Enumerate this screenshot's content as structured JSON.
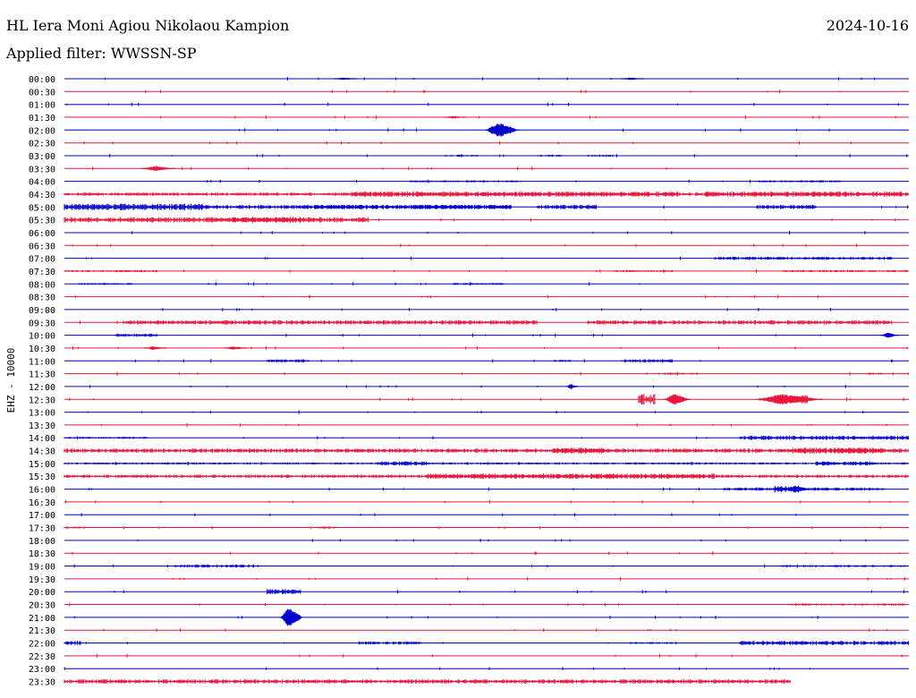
{
  "header": {
    "station": "HL Iera Moni Agiou Nikolaou Kampion",
    "date": "2024-10-16",
    "filter": "Applied filter: WWSSN-SP"
  },
  "chart_data": {
    "type": "line",
    "title": "HL Iera Moni Agiou Nikolaou Kampion",
    "ylabel": "EHZ - 10000",
    "trace_colors": [
      "#0000cc",
      "#e8163c"
    ],
    "rows": [
      "00:00",
      "00:30",
      "01:00",
      "01:30",
      "02:00",
      "02:30",
      "03:00",
      "03:30",
      "04:00",
      "04:30",
      "05:00",
      "05:30",
      "06:00",
      "06:30",
      "07:00",
      "07:30",
      "08:00",
      "08:30",
      "09:00",
      "09:30",
      "10:00",
      "10:30",
      "11:00",
      "11:30",
      "12:00",
      "12:30",
      "13:00",
      "13:30",
      "14:00",
      "14:30",
      "15:00",
      "15:30",
      "16:00",
      "16:30",
      "17:00",
      "17:30",
      "18:00",
      "18:30",
      "19:00",
      "19:30",
      "20:00",
      "20:30",
      "21:00",
      "21:30",
      "22:00",
      "22:30",
      "23:00",
      "23:30"
    ],
    "row_end": {
      "23:30": 0.86
    },
    "activity": {
      "03:00": [
        [
          0.45,
          0.49,
          1
        ],
        [
          0.56,
          0.59,
          1
        ],
        [
          0.62,
          0.65,
          1
        ]
      ],
      "04:00": [
        [
          0.41,
          0.54,
          1
        ],
        [
          0.82,
          0.92,
          1
        ]
      ],
      "04:30": [
        [
          0.0,
          1.0,
          1.5
        ],
        [
          0.34,
          0.73,
          2.5
        ],
        [
          0.76,
          1.0,
          2.5
        ]
      ],
      "05:00": [
        [
          0.0,
          0.53,
          2
        ],
        [
          0.0,
          0.17,
          3
        ],
        [
          0.29,
          0.53,
          2
        ],
        [
          0.56,
          0.63,
          2
        ],
        [
          0.82,
          0.89,
          2
        ]
      ],
      "05:30": [
        [
          0.0,
          0.36,
          2.5
        ],
        [
          0.2,
          0.28,
          3
        ]
      ],
      "07:00": [
        [
          0.77,
          0.98,
          1.5
        ]
      ],
      "07:30": [
        [
          0.0,
          0.11,
          1
        ],
        [
          0.65,
          0.72,
          1
        ],
        [
          0.85,
          1.0,
          1
        ]
      ],
      "08:00": [
        [
          0.02,
          0.08,
          1
        ],
        [
          0.46,
          0.52,
          1
        ]
      ],
      "09:30": [
        [
          0.07,
          0.56,
          2
        ],
        [
          0.62,
          0.98,
          2
        ]
      ],
      "10:00": [
        [
          0.06,
          0.11,
          1.5
        ]
      ],
      "11:00": [
        [
          0.24,
          0.29,
          1.5
        ],
        [
          0.58,
          0.6,
          1
        ],
        [
          0.66,
          0.72,
          1.5
        ]
      ],
      "11:30": [
        [
          0.71,
          0.75,
          1
        ],
        [
          0.95,
          0.97,
          1
        ]
      ],
      "12:30": [
        [
          0.68,
          0.7,
          5
        ],
        [
          0.84,
          0.88,
          4
        ]
      ],
      "14:00": [
        [
          0.0,
          0.1,
          1
        ],
        [
          0.8,
          1.0,
          2
        ]
      ],
      "14:30": [
        [
          0.0,
          1.0,
          2
        ],
        [
          0.58,
          0.64,
          3
        ],
        [
          0.86,
          0.97,
          3
        ]
      ],
      "15:00": [
        [
          0.0,
          1.0,
          1
        ],
        [
          0.37,
          0.43,
          2
        ],
        [
          0.89,
          0.96,
          2
        ]
      ],
      "15:30": [
        [
          0.0,
          1.0,
          1.5
        ],
        [
          0.43,
          0.77,
          2.5
        ]
      ],
      "16:00": [
        [
          0.78,
          0.97,
          1.5
        ],
        [
          0.84,
          0.87,
          3
        ]
      ],
      "17:30": [
        [
          0.0,
          0.02,
          1
        ],
        [
          0.3,
          0.32,
          1
        ]
      ],
      "19:00": [
        [
          0.13,
          0.23,
          1.5
        ],
        [
          0.85,
          1.0,
          1
        ]
      ],
      "20:00": [
        [
          0.24,
          0.28,
          2.5
        ]
      ],
      "20:30": [
        [
          0.86,
          1.0,
          1
        ]
      ],
      "22:00": [
        [
          0.0,
          0.02,
          2
        ],
        [
          0.35,
          0.42,
          1.5
        ],
        [
          0.67,
          0.72,
          1
        ],
        [
          0.8,
          1.0,
          2
        ]
      ],
      "23:30": [
        [
          0.0,
          0.86,
          2
        ]
      ]
    },
    "events": [
      [
        "00:00",
        0.33,
        1.5,
        0.01
      ],
      [
        "00:00",
        0.67,
        1.5,
        0.01
      ],
      [
        "01:30",
        0.46,
        1.5,
        0.01
      ],
      [
        "02:00",
        0.514,
        9,
        0.015
      ],
      [
        "03:30",
        0.107,
        3,
        0.015
      ],
      [
        "10:00",
        0.975,
        3,
        0.008
      ],
      [
        "10:30",
        0.105,
        2,
        0.01
      ],
      [
        "10:30",
        0.2,
        2,
        0.01
      ],
      [
        "12:00",
        0.6,
        3,
        0.005
      ],
      [
        "12:30",
        0.722,
        6,
        0.012
      ],
      [
        "12:30",
        0.85,
        6,
        0.03
      ],
      [
        "16:00",
        0.865,
        4,
        0.012
      ],
      [
        "21:00",
        0.266,
        12,
        0.01
      ]
    ]
  }
}
